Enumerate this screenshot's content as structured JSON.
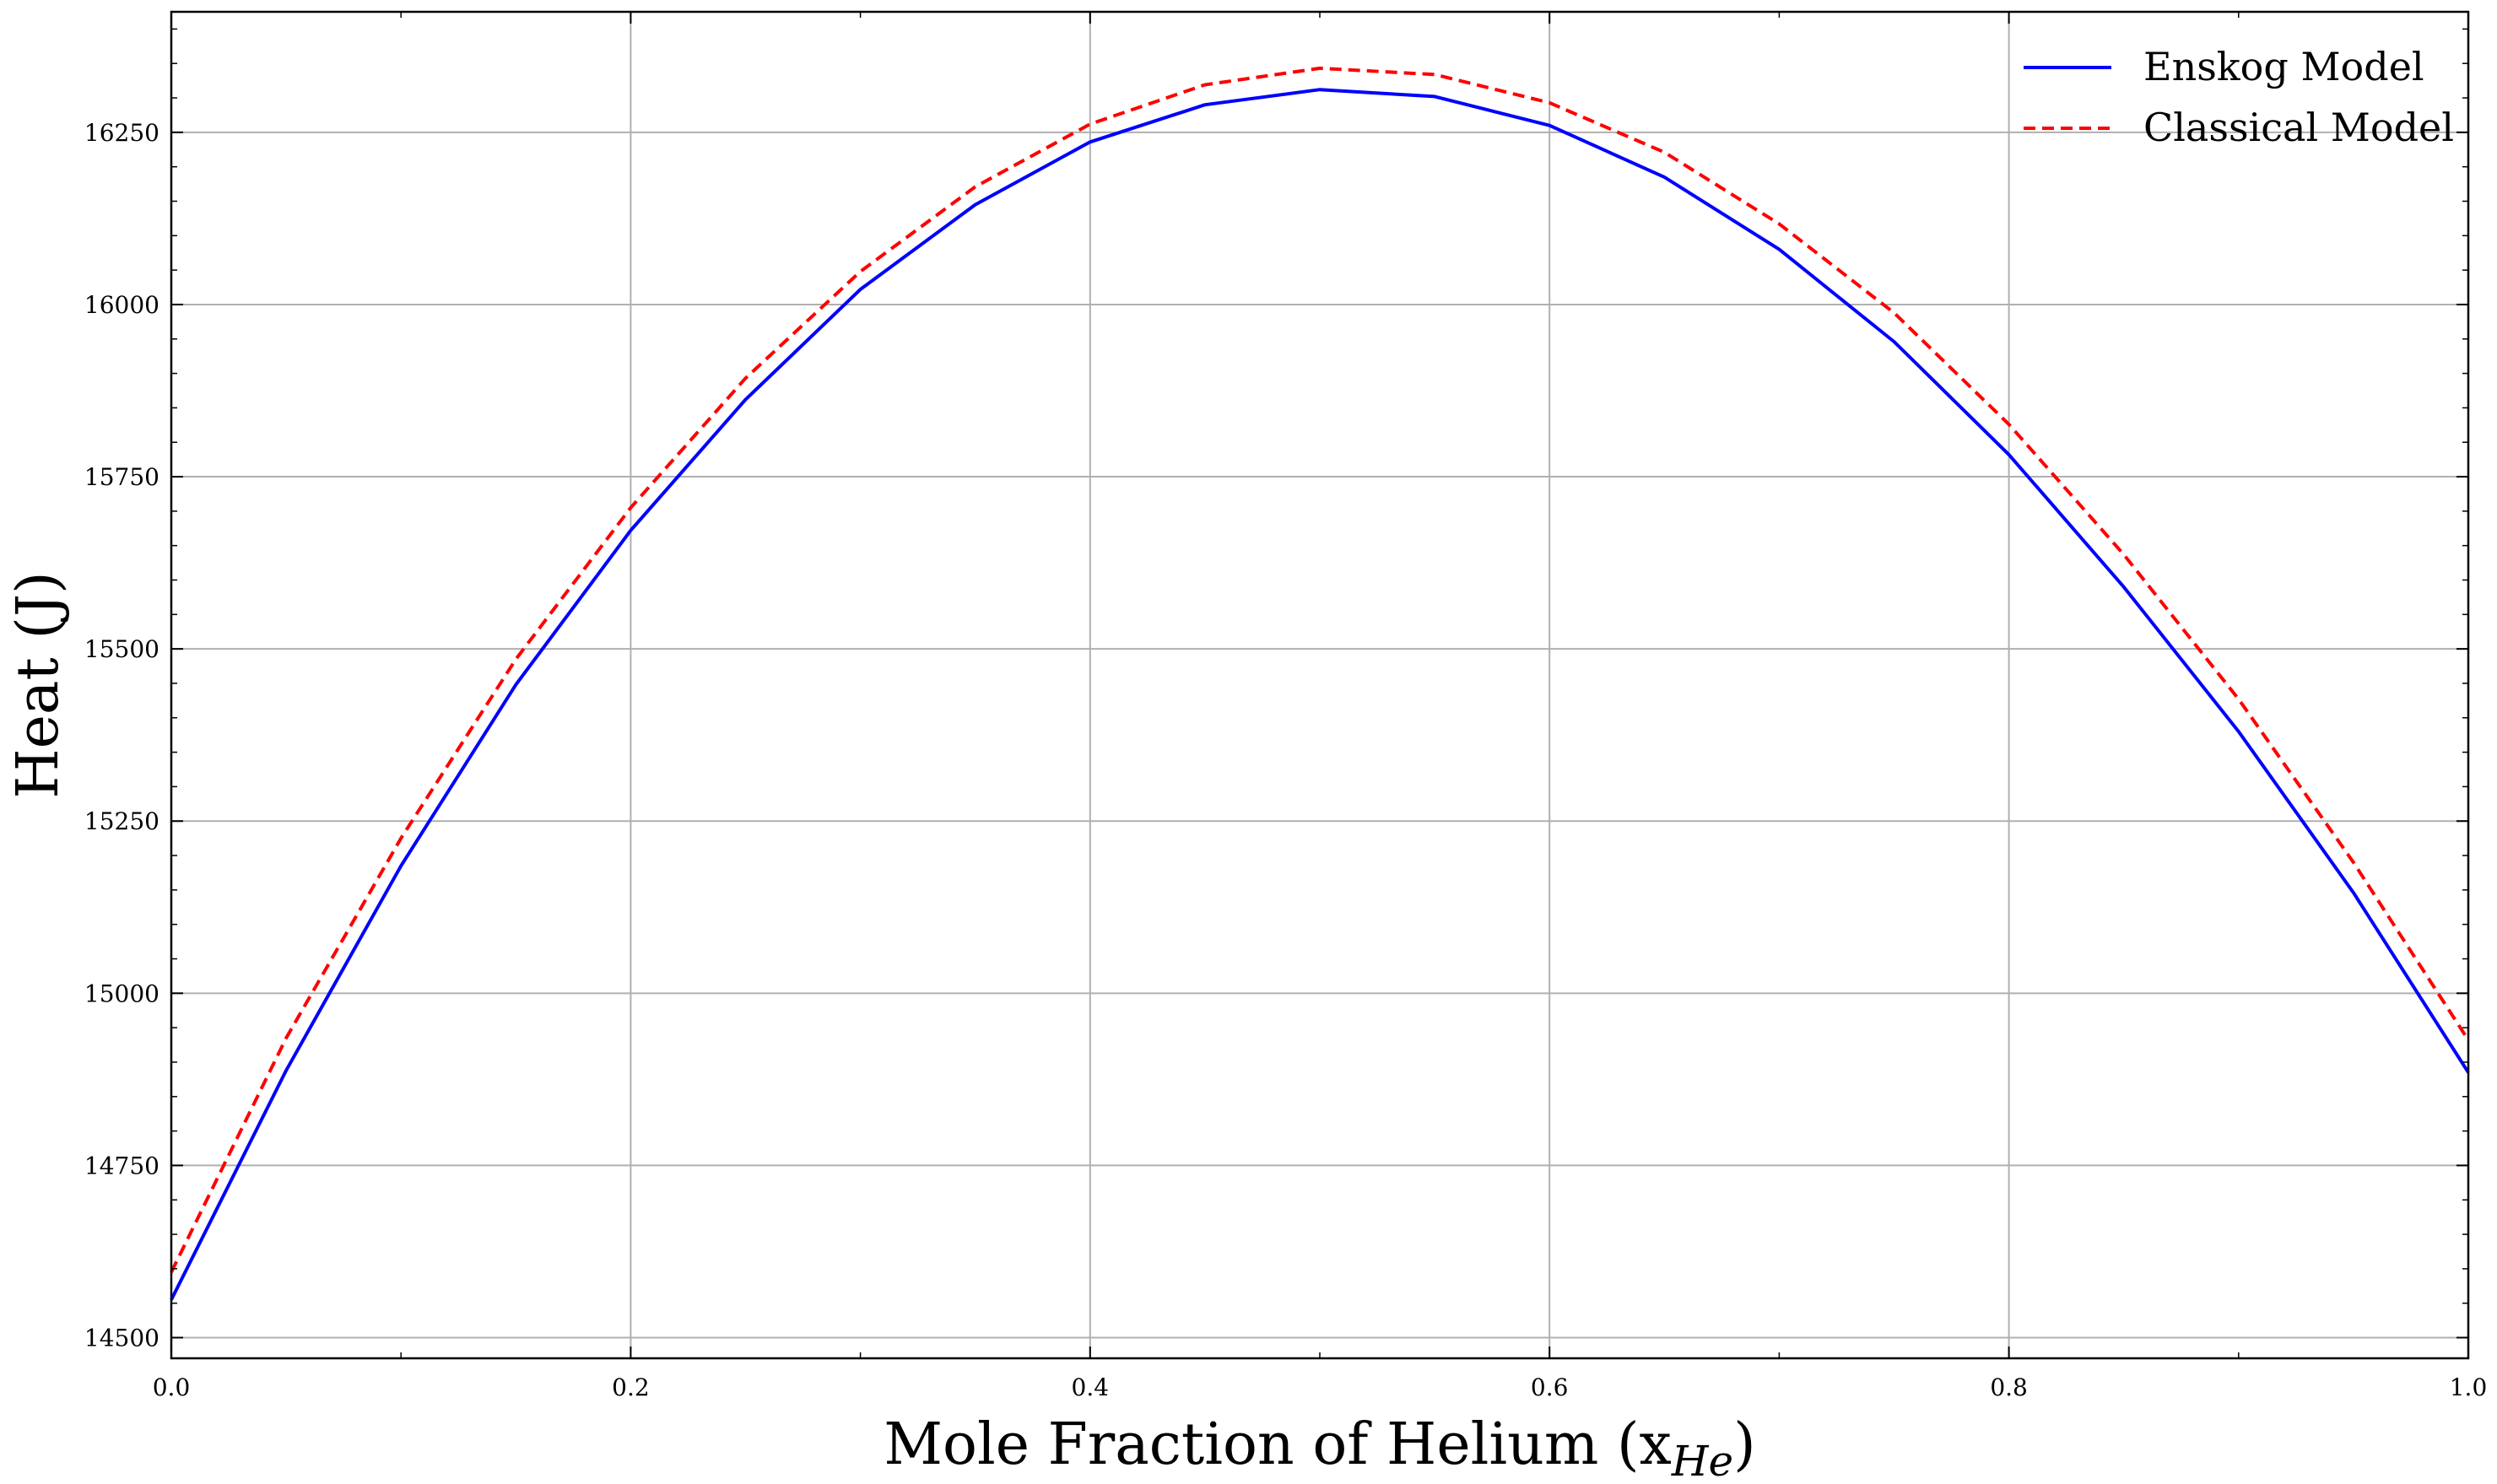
{
  "chart_data": {
    "type": "line",
    "title": "",
    "xlabel": "Mole Fraction of Helium (x",
    "xlabel_subscript": "He",
    "xlabel_close": ")",
    "ylabel": "Heat (J)",
    "xlim": [
      0.0,
      1.0
    ],
    "ylim": [
      14470,
      16425
    ],
    "x_ticks": [
      0.0,
      0.2,
      0.4,
      0.6,
      0.8,
      1.0
    ],
    "x_tick_labels": [
      "0.0",
      "0.2",
      "0.4",
      "0.6",
      "0.8",
      "1.0"
    ],
    "y_ticks": [
      14500,
      14750,
      15000,
      15250,
      15500,
      15750,
      16000,
      16250
    ],
    "y_tick_labels": [
      "14500",
      "14750",
      "15000",
      "15250",
      "15500",
      "15750",
      "16000",
      "16250"
    ],
    "grid": true,
    "legend_position": "top-right",
    "x": [
      0.0,
      0.05,
      0.1,
      0.15,
      0.2,
      0.25,
      0.3,
      0.35,
      0.4,
      0.45,
      0.5,
      0.55,
      0.6,
      0.65,
      0.7,
      0.75,
      0.8,
      0.85,
      0.9,
      0.95,
      1.0
    ],
    "series": [
      {
        "name": "Enskog Model",
        "color": "#0000ff",
        "dash": "solid",
        "values": [
          14555,
          14888,
          15185,
          15448,
          15672,
          15862,
          16022,
          16145,
          16236,
          16290,
          16312,
          16302,
          16260,
          16185,
          16080,
          15946,
          15782,
          15590,
          15380,
          15146,
          14885
        ]
      },
      {
        "name": "Classical Model",
        "color": "#ff0000",
        "dash": "dashed",
        "values": [
          14595,
          14935,
          15225,
          15485,
          15705,
          15893,
          16048,
          16171,
          16262,
          16319,
          16343,
          16334,
          16293,
          16221,
          16117,
          15988,
          15826,
          15637,
          15427,
          15190,
          14932
        ]
      }
    ]
  }
}
